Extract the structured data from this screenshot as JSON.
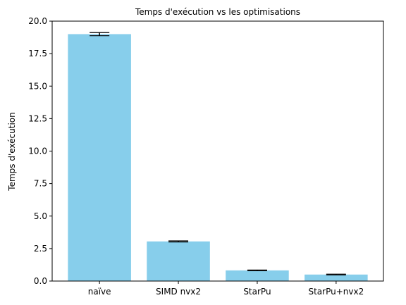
{
  "chart_data": {
    "type": "bar",
    "title": "Temps d'exécution vs les optimisations",
    "xlabel": "",
    "ylabel": "Temps d'exécution",
    "categories": [
      "naïve",
      "SIMD nvx2",
      "StarPu",
      "StarPu+nvx2"
    ],
    "values": [
      19.0,
      3.05,
      0.82,
      0.5
    ],
    "errors": [
      0.12,
      0.04,
      0.03,
      0.03
    ],
    "ylim": [
      0,
      20
    ],
    "yticks": [
      0.0,
      2.5,
      5.0,
      7.5,
      10.0,
      12.5,
      15.0,
      17.5,
      20.0
    ],
    "ytick_labels": [
      "0.0",
      "2.5",
      "5.0",
      "7.5",
      "10.0",
      "12.5",
      "15.0",
      "17.5",
      "20.0"
    ],
    "bar_color": "#87CEEB",
    "errorbar_color": "#000000",
    "grid": false,
    "legend": "none"
  }
}
